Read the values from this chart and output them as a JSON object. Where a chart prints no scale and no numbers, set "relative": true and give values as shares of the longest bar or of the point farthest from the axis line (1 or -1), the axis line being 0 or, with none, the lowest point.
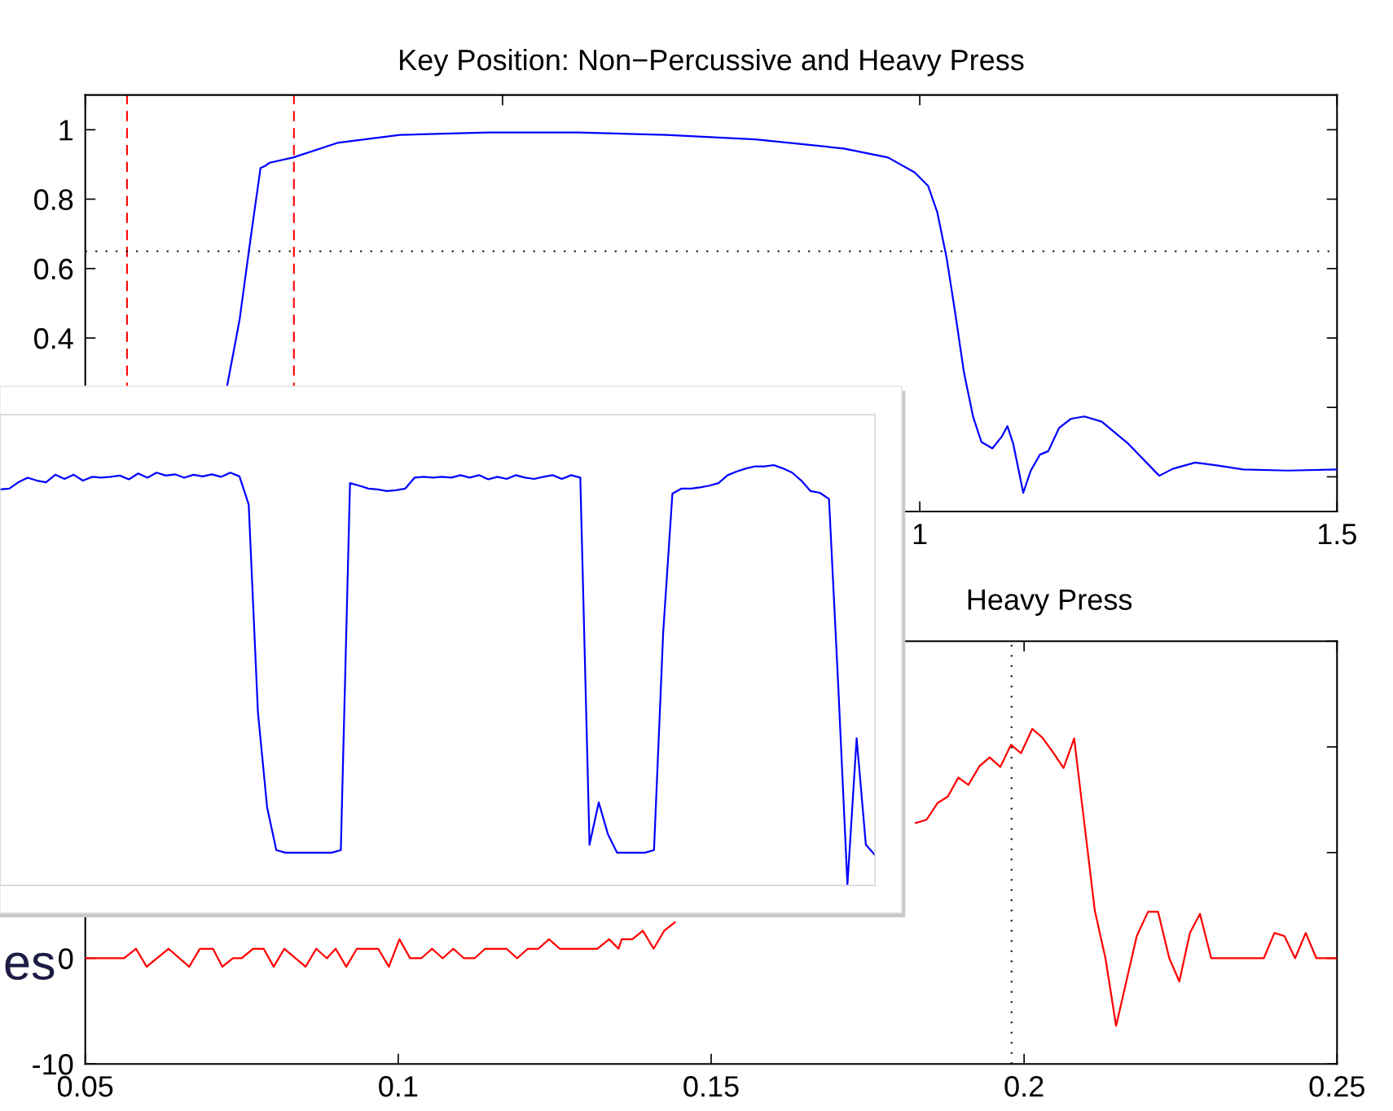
{
  "chart_data": [
    {
      "type": "line",
      "title": "Key Position: Non−Percussive and Heavy Press",
      "series": [
        {
          "color": "#0000ff",
          "x": [
            0.17,
            0.185,
            0.198,
            0.21,
            0.215,
            0.221,
            0.249,
            0.302,
            0.377,
            0.483,
            0.59,
            0.696,
            0.803,
            0.909,
            0.962,
            0.994,
            1.01,
            1.021,
            1.032,
            1.042,
            1.053,
            1.064,
            1.074,
            1.087,
            1.098,
            1.105,
            1.112,
            1.124,
            1.133,
            1.144,
            1.154,
            1.167,
            1.181,
            1.197,
            1.218,
            1.25,
            1.287,
            1.303,
            1.33,
            1.356,
            1.388,
            1.441,
            1.5
          ],
          "values": [
            0.262,
            0.454,
            0.685,
            0.89,
            0.895,
            0.905,
            0.92,
            0.962,
            0.985,
            0.992,
            0.992,
            0.985,
            0.972,
            0.946,
            0.92,
            0.877,
            0.838,
            0.762,
            0.633,
            0.479,
            0.3,
            0.172,
            0.1,
            0.082,
            0.115,
            0.146,
            0.095,
            -0.046,
            0.018,
            0.064,
            0.074,
            0.141,
            0.167,
            0.174,
            0.159,
            0.095,
            0.003,
            0.023,
            0.041,
            0.033,
            0.021,
            0.018,
            0.021
          ]
        }
      ],
      "xlim": [
        0,
        1.5
      ],
      "ylim": [
        -0.1,
        1.1
      ],
      "xticks": [
        {
          "value": 0,
          "label": null
        },
        {
          "value": 0.5,
          "label": null
        },
        1,
        1.5
      ],
      "yticks": [
        {
          "value": 0,
          "label": null
        },
        {
          "value": 0.2,
          "label": null
        },
        0.4,
        0.6,
        0.8,
        1
      ],
      "ref_lines": [
        {
          "axis": "x",
          "value": 0.05,
          "color": "#ff0000",
          "line_style": "dashed"
        },
        {
          "axis": "x",
          "value": 0.25,
          "color": "#ff0000",
          "line_style": "dashed"
        },
        {
          "axis": "y",
          "value": 0.65,
          "color": "#000000",
          "line_style": "dotted"
        }
      ],
      "grid": false,
      "legend": false,
      "marker": "none",
      "line_style": "solid"
    },
    {
      "type": "line",
      "title": "Heavy Press",
      "series": [
        {
          "color": "#ff0000",
          "x": [
            0.05,
            0.0562,
            0.0581,
            0.0598,
            0.0633,
            0.0666,
            0.0683,
            0.0704,
            0.0719,
            0.0736,
            0.075,
            0.0768,
            0.0785,
            0.0801,
            0.0818,
            0.0852,
            0.0869,
            0.0886,
            0.09,
            0.0917,
            0.0934,
            0.0951,
            0.0968,
            0.0985,
            0.1002,
            0.1019,
            0.1037,
            0.1054,
            0.1071,
            0.1088,
            0.1105,
            0.1122,
            0.1139,
            0.1173,
            0.119,
            0.1207,
            0.1224,
            0.1241,
            0.1258,
            0.1301,
            0.1318,
            0.1337,
            0.1352,
            0.1357,
            0.1374,
            0.1391,
            0.1408,
            0.1425,
            0.1442,
            0.16,
            0.1827,
            0.1844,
            0.1862,
            0.1878,
            0.1895,
            0.1911,
            0.1929,
            0.1945,
            0.1962,
            0.1979,
            0.1995,
            0.2013,
            0.2029,
            0.2046,
            0.2063,
            0.208,
            0.2113,
            0.213,
            0.2147,
            0.218,
            0.2198,
            0.2214,
            0.2232,
            0.2248,
            0.2265,
            0.2281,
            0.2299,
            0.2383,
            0.24,
            0.2416,
            0.2433,
            0.245,
            0.2467,
            0.25
          ],
          "values": [
            0,
            0,
            0.9,
            -0.8,
            0.9,
            -0.8,
            0.9,
            0.9,
            -0.8,
            0,
            0,
            0.9,
            0.9,
            -0.8,
            0.9,
            -0.8,
            0.9,
            0,
            0.9,
            -0.8,
            0.9,
            0.9,
            0.9,
            -0.8,
            1.8,
            0,
            0,
            0.9,
            0,
            0.9,
            0,
            0,
            0.9,
            0.9,
            0,
            0.9,
            0.9,
            1.8,
            0.9,
            0.9,
            0.9,
            1.8,
            0.9,
            1.8,
            1.8,
            2.6,
            0.9,
            2.6,
            3.4,
            null,
            12.8,
            13.1,
            14.7,
            15.3,
            17.1,
            16.4,
            18.2,
            19.0,
            18.1,
            20.2,
            19.4,
            21.7,
            20.9,
            19.5,
            18.0,
            20.8,
            4.5,
            0,
            -6.4,
            2.1,
            4.4,
            4.4,
            0,
            -2.2,
            2.4,
            4.2,
            0,
            0,
            2.4,
            2.1,
            0,
            2.4,
            0,
            0
          ]
        }
      ],
      "xlim": [
        0.05,
        0.25
      ],
      "ylim": [
        -10,
        30
      ],
      "xticks": [
        0.05,
        0.1,
        0.15,
        0.2,
        0.25
      ],
      "yticks": [
        -10,
        0,
        {
          "value": 10,
          "label": null
        },
        {
          "value": 20,
          "label": null
        },
        {
          "value": 30,
          "label": null
        }
      ],
      "ref_lines": [
        {
          "axis": "x",
          "value": 0.198,
          "color": "#000000",
          "line_style": "dotted"
        }
      ],
      "annotations": [
        "es"
      ],
      "grid": false,
      "legend": false,
      "marker": "none",
      "line_style": "solid"
    },
    {
      "type": "line",
      "relative": true,
      "categories": [
        null,
        null,
        null,
        null,
        null,
        null,
        null,
        null,
        null,
        null,
        null,
        null,
        null,
        null,
        null,
        null,
        null,
        null,
        null,
        null,
        null,
        null,
        null,
        null,
        null,
        null,
        null,
        null,
        null,
        null,
        null,
        null,
        null,
        null,
        null,
        null,
        null,
        null,
        null,
        null,
        null,
        null,
        null,
        null,
        null,
        null,
        null,
        null,
        null,
        null,
        null,
        null,
        null,
        null,
        null,
        null,
        null,
        null,
        null,
        null,
        null,
        null,
        null,
        null,
        null,
        null,
        null,
        null,
        null,
        null,
        null,
        null,
        null,
        null,
        null,
        null,
        null,
        null,
        null,
        null,
        null,
        null,
        null,
        null,
        null,
        null,
        null,
        null,
        null,
        null,
        null,
        null,
        null,
        null,
        null,
        null
      ],
      "series": [
        {
          "color": "#0000ff",
          "values": [
            0.942,
            0.944,
            0.959,
            0.97,
            0.963,
            0.959,
            0.977,
            0.967,
            0.977,
            0.963,
            0.972,
            0.97,
            0.972,
            0.975,
            0.966,
            0.98,
            0.97,
            0.982,
            0.975,
            0.978,
            0.97,
            0.977,
            0.973,
            0.978,
            0.972,
            0.982,
            0.973,
            0.906,
            0.411,
            0.184,
            0.082,
            0.076,
            0.076,
            0.076,
            0.076,
            0.076,
            0.076,
            0.082,
            0.957,
            0.951,
            0.944,
            0.942,
            0.938,
            0.94,
            0.944,
            0.97,
            0.972,
            0.97,
            0.972,
            0.97,
            0.976,
            0.97,
            0.976,
            0.966,
            0.972,
            0.967,
            0.976,
            0.97,
            0.967,
            0.972,
            0.976,
            0.967,
            0.976,
            0.97,
            0.095,
            0.196,
            0.12,
            0.076,
            0.076,
            0.076,
            0.076,
            0.082,
            0.602,
            0.932,
            0.944,
            0.944,
            0.947,
            0.951,
            0.957,
            0.976,
            0.985,
            0.992,
            0.997,
            0.997,
            1,
            0.992,
            0.982,
            0.963,
            0.938,
            0.934,
            0.919,
            0.475,
            0,
            0.349,
            0.095,
            0.07
          ]
        }
      ],
      "grid": false,
      "legend": false,
      "marker": "none",
      "line_style": "solid"
    }
  ]
}
